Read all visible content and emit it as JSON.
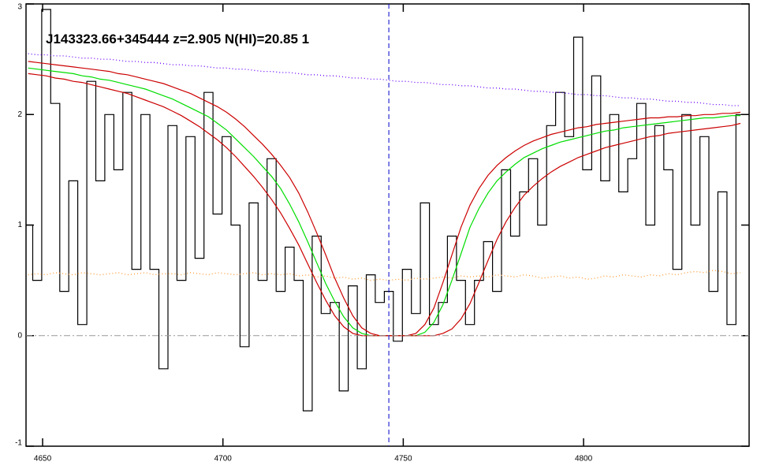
{
  "chart_data": {
    "type": "line",
    "title": "J143323.66+345444 z=2.905 N(HI)=20.85 1",
    "xlim": [
      4645.4,
      4845.9
    ],
    "ylim": [
      -1,
      3
    ],
    "xticks": [
      4650,
      4700,
      4750,
      4800
    ],
    "yticks": [
      -1,
      0,
      1,
      2,
      3
    ],
    "reference_x": 4746,
    "reference_y": 0,
    "x": [
      4646,
      4648.5,
      4651,
      4653.5,
      4656,
      4658.5,
      4661,
      4663.5,
      4666,
      4668.5,
      4671,
      4673.5,
      4676,
      4678.5,
      4681,
      4683.5,
      4686,
      4688.5,
      4691,
      4693.5,
      4696,
      4698.5,
      4701,
      4703.5,
      4706,
      4708.5,
      4711,
      4713.5,
      4716,
      4718.5,
      4721,
      4723.5,
      4726,
      4728.5,
      4731,
      4733.5,
      4736,
      4738.5,
      4741,
      4743.5,
      4746,
      4748.5,
      4751,
      4753.5,
      4756,
      4758.5,
      4761,
      4763.5,
      4766,
      4768.5,
      4771,
      4773.5,
      4776,
      4778.5,
      4781,
      4783.5,
      4786,
      4788.5,
      4791,
      4793.5,
      4796,
      4798.5,
      4801,
      4803.5,
      4806,
      4808.5,
      4811,
      4813.5,
      4816,
      4818.5,
      4821,
      4823.5,
      4826,
      4828.5,
      4831,
      4833.5,
      4836,
      4838.5,
      4841,
      4843.5
    ],
    "series": [
      {
        "color": "#000000",
        "style": "step",
        "values": [
          1.0,
          0.5,
          2.95,
          2.1,
          0.4,
          1.4,
          0.1,
          2.3,
          1.4,
          2.0,
          1.5,
          2.2,
          0.6,
          2.0,
          0.6,
          -0.3,
          1.9,
          0.5,
          1.8,
          0.7,
          2.2,
          1.1,
          1.8,
          1.0,
          -0.1,
          1.2,
          0.5,
          1.6,
          0.4,
          0.8,
          0.5,
          -0.68,
          0.9,
          0.2,
          0.3,
          -0.5,
          0.45,
          -0.3,
          0.55,
          0.3,
          0.4,
          -0.05,
          0.6,
          0.2,
          1.2,
          0.1,
          0.3,
          0.9,
          0.5,
          0.1,
          0.5,
          0.85,
          0.4,
          1.5,
          0.9,
          1.3,
          1.6,
          1.0,
          1.9,
          2.2,
          1.8,
          2.7,
          1.5,
          2.35,
          1.4,
          2.0,
          1.3,
          1.6,
          2.1,
          1.0,
          1.9,
          1.5,
          0.6,
          2.0,
          1.0,
          1.8,
          0.4,
          1.3,
          0.1,
          2.0
        ]
      },
      {
        "color": "#00dd00",
        "style": "solid",
        "values": [
          2.42,
          2.41,
          2.4,
          2.39,
          2.38,
          2.37,
          2.35,
          2.34,
          2.32,
          2.31,
          2.29,
          2.27,
          2.25,
          2.23,
          2.2,
          2.17,
          2.14,
          2.1,
          2.06,
          2.02,
          1.98,
          1.92,
          1.86,
          1.78,
          1.7,
          1.62,
          1.53,
          1.44,
          1.33,
          1.19,
          1.03,
          0.85,
          0.66,
          0.47,
          0.31,
          0.17,
          0.07,
          0.02,
          0,
          0,
          0,
          0,
          0,
          0,
          0.03,
          0.12,
          0.28,
          0.5,
          0.74,
          0.98,
          1.15,
          1.29,
          1.4,
          1.48,
          1.55,
          1.61,
          1.65,
          1.69,
          1.72,
          1.75,
          1.77,
          1.79,
          1.81,
          1.83,
          1.85,
          1.86,
          1.88,
          1.89,
          1.9,
          1.91,
          1.92,
          1.93,
          1.94,
          1.95,
          1.96,
          1.97,
          1.97,
          1.98,
          1.99,
          1.99
        ]
      },
      {
        "color": "#cc0000",
        "style": "solid",
        "values": [
          2.48,
          2.47,
          2.46,
          2.45,
          2.44,
          2.43,
          2.42,
          2.41,
          2.4,
          2.39,
          2.37,
          2.36,
          2.34,
          2.32,
          2.3,
          2.28,
          2.25,
          2.22,
          2.19,
          2.15,
          2.11,
          2.07,
          2.02,
          1.96,
          1.89,
          1.81,
          1.73,
          1.64,
          1.54,
          1.43,
          1.29,
          1.12,
          0.93,
          0.73,
          0.52,
          0.34,
          0.18,
          0.07,
          0.02,
          0,
          0,
          0,
          0,
          0.02,
          0.1,
          0.25,
          0.48,
          0.73,
          0.98,
          1.18,
          1.33,
          1.45,
          1.54,
          1.61,
          1.67,
          1.72,
          1.76,
          1.79,
          1.82,
          1.84,
          1.86,
          1.88,
          1.89,
          1.91,
          1.92,
          1.93,
          1.94,
          1.95,
          1.96,
          1.97,
          1.97,
          1.98,
          1.98,
          1.99,
          1.99,
          2.0,
          2.0,
          2.01,
          2.01,
          2.02
        ]
      },
      {
        "color": "#cc0000",
        "style": "solid",
        "values": [
          2.37,
          2.36,
          2.35,
          2.33,
          2.32,
          2.3,
          2.29,
          2.27,
          2.25,
          2.23,
          2.21,
          2.19,
          2.16,
          2.13,
          2.1,
          2.07,
          2.03,
          1.99,
          1.94,
          1.89,
          1.83,
          1.77,
          1.7,
          1.62,
          1.53,
          1.44,
          1.34,
          1.23,
          1.11,
          0.97,
          0.82,
          0.65,
          0.48,
          0.32,
          0.18,
          0.08,
          0.02,
          0,
          0,
          0,
          0,
          0,
          0,
          0,
          0,
          0,
          0.02,
          0.06,
          0.15,
          0.29,
          0.48,
          0.68,
          0.87,
          1.03,
          1.16,
          1.27,
          1.35,
          1.42,
          1.48,
          1.53,
          1.57,
          1.61,
          1.64,
          1.67,
          1.7,
          1.72,
          1.74,
          1.76,
          1.78,
          1.8,
          1.81,
          1.83,
          1.84,
          1.85,
          1.86,
          1.87,
          1.88,
          1.89,
          1.9,
          1.92
        ]
      },
      {
        "color": "#6a00ff",
        "style": "dotted",
        "values": [
          2.55,
          2.54,
          2.54,
          2.53,
          2.53,
          2.52,
          2.51,
          2.51,
          2.5,
          2.5,
          2.49,
          2.48,
          2.48,
          2.47,
          2.47,
          2.46,
          2.45,
          2.45,
          2.44,
          2.44,
          2.43,
          2.42,
          2.42,
          2.41,
          2.41,
          2.4,
          2.39,
          2.39,
          2.38,
          2.38,
          2.37,
          2.36,
          2.36,
          2.35,
          2.35,
          2.34,
          2.33,
          2.33,
          2.32,
          2.32,
          2.31,
          2.3,
          2.3,
          2.29,
          2.29,
          2.28,
          2.27,
          2.27,
          2.26,
          2.26,
          2.25,
          2.24,
          2.24,
          2.23,
          2.23,
          2.22,
          2.21,
          2.21,
          2.2,
          2.2,
          2.19,
          2.18,
          2.18,
          2.17,
          2.17,
          2.16,
          2.15,
          2.15,
          2.14,
          2.14,
          2.13,
          2.12,
          2.12,
          2.11,
          2.11,
          2.1,
          2.09,
          2.09,
          2.08,
          2.08
        ]
      },
      {
        "color": "#ff9933",
        "style": "dotted",
        "values": [
          0.55,
          0.56,
          0.55,
          0.57,
          0.56,
          0.55,
          0.57,
          0.56,
          0.55,
          0.56,
          0.57,
          0.55,
          0.56,
          0.57,
          0.55,
          0.56,
          0.56,
          0.55,
          0.57,
          0.56,
          0.55,
          0.57,
          0.56,
          0.55,
          0.56,
          0.57,
          0.55,
          0.56,
          0.55,
          0.56,
          0.54,
          0.55,
          0.53,
          0.54,
          0.52,
          0.53,
          0.51,
          0.52,
          0.5,
          0.51,
          0.5,
          0.51,
          0.5,
          0.52,
          0.51,
          0.52,
          0.53,
          0.52,
          0.54,
          0.53,
          0.54,
          0.53,
          0.55,
          0.54,
          0.53,
          0.55,
          0.54,
          0.52,
          0.53,
          0.54,
          0.52,
          0.53,
          0.51,
          0.52,
          0.54,
          0.53,
          0.55,
          0.54,
          0.53,
          0.55,
          0.54,
          0.56,
          0.55,
          0.57,
          0.58,
          0.57,
          0.59,
          0.58,
          0.56,
          0.57
        ]
      }
    ]
  }
}
